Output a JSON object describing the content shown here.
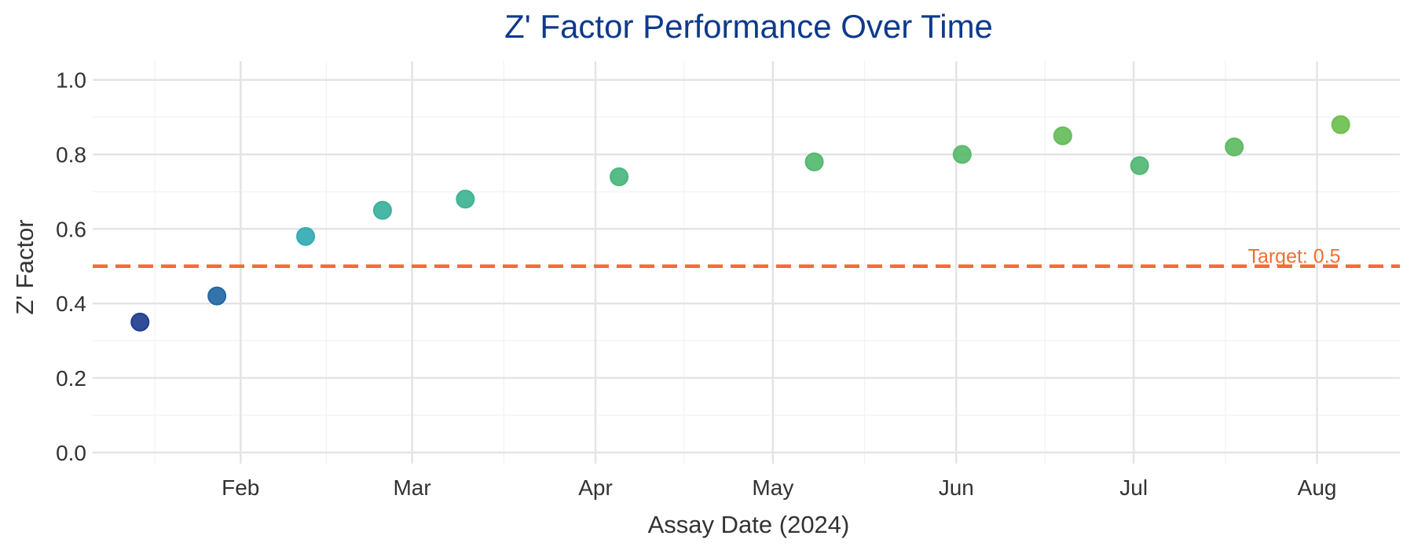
{
  "chart_data": {
    "type": "scatter",
    "title": "Z' Factor Performance Over Time",
    "xlabel": "Assay Date (2024)",
    "ylabel": "Z' Factor",
    "xlim": [
      "2024-01-07",
      "2024-08-15"
    ],
    "ylim": [
      -0.03,
      1.05
    ],
    "x_ticks": [
      {
        "date": "2024-02-01",
        "label": "Feb"
      },
      {
        "date": "2024-03-01",
        "label": "Mar"
      },
      {
        "date": "2024-04-01",
        "label": "Apr"
      },
      {
        "date": "2024-05-01",
        "label": "May"
      },
      {
        "date": "2024-06-01",
        "label": "Jun"
      },
      {
        "date": "2024-07-01",
        "label": "Jul"
      },
      {
        "date": "2024-08-01",
        "label": "Aug"
      }
    ],
    "y_ticks": [
      {
        "value": 0.0,
        "label": "0.0"
      },
      {
        "value": 0.2,
        "label": "0.2"
      },
      {
        "value": 0.4,
        "label": "0.4"
      },
      {
        "value": 0.6,
        "label": "0.6"
      },
      {
        "value": 0.8,
        "label": "0.8"
      },
      {
        "value": 1.0,
        "label": "1.0"
      }
    ],
    "grid": true,
    "points": [
      {
        "x": "2024-01-15",
        "y": 0.35
      },
      {
        "x": "2024-01-28",
        "y": 0.42
      },
      {
        "x": "2024-02-12",
        "y": 0.58
      },
      {
        "x": "2024-02-25",
        "y": 0.65
      },
      {
        "x": "2024-03-10",
        "y": 0.68
      },
      {
        "x": "2024-04-05",
        "y": 0.74
      },
      {
        "x": "2024-05-08",
        "y": 0.78
      },
      {
        "x": "2024-06-02",
        "y": 0.8
      },
      {
        "x": "2024-06-19",
        "y": 0.85
      },
      {
        "x": "2024-07-02",
        "y": 0.77
      },
      {
        "x": "2024-07-18",
        "y": 0.82
      },
      {
        "x": "2024-08-05",
        "y": 0.88
      }
    ],
    "colormap": [
      "#1f3d8f",
      "#2aa9c4",
      "#41b48a",
      "#6cbf4f"
    ],
    "threshold": {
      "value": 0.5,
      "label": "Target: 0.5",
      "color": "#f26d32",
      "style": "dashed"
    },
    "colors": {
      "title": "#0d3a8c",
      "text": "#333333"
    }
  }
}
